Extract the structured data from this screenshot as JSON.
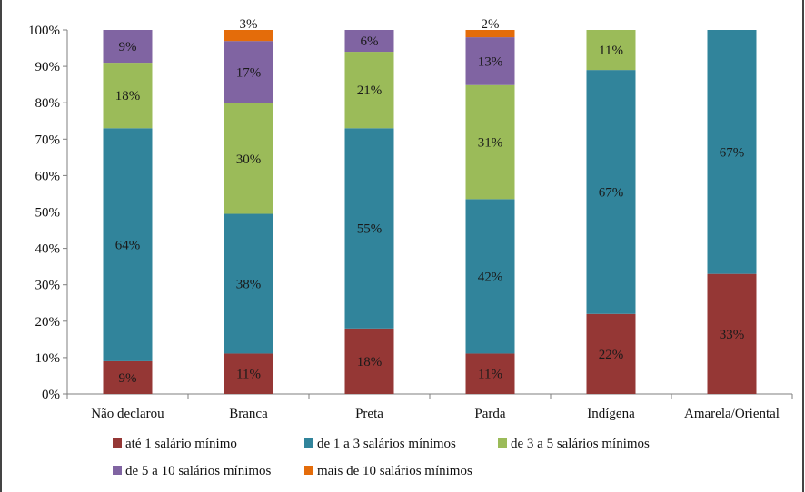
{
  "chart_data": {
    "type": "bar",
    "stacked": true,
    "percent_stacked": true,
    "categories": [
      "Não declarou",
      "Branca",
      "Preta",
      "Parda",
      "Indígena",
      "Amarela/Oriental"
    ],
    "series": [
      {
        "name": "até 1 salário mínimo",
        "color": "#953735",
        "values": [
          9,
          11,
          18,
          11,
          22,
          33
        ],
        "labels": [
          "9%",
          "11%",
          "18%",
          "11%",
          "22%",
          "33%"
        ]
      },
      {
        "name": "de 1 a 3 salários mínimos",
        "color": "#31849b",
        "values": [
          64,
          38,
          55,
          42,
          67,
          67
        ],
        "labels": [
          "64%",
          "38%",
          "55%",
          "42%",
          "67%",
          "67%"
        ]
      },
      {
        "name": "de 3 a 5 salários mínimos",
        "color": "#9bbb59",
        "values": [
          18,
          30,
          21,
          31,
          11,
          0
        ],
        "labels": [
          "18%",
          "30%",
          "21%",
          "31%",
          "11%",
          ""
        ]
      },
      {
        "name": "de 5 a 10 salários mínimos",
        "color": "#8064a2",
        "values": [
          9,
          17,
          6,
          13,
          0,
          0
        ],
        "labels": [
          "9%",
          "17%",
          "6%",
          "13%",
          "",
          ""
        ]
      },
      {
        "name": "mais de 10 salários mínimos",
        "color": "#e46c0a",
        "values": [
          0,
          3,
          0,
          2,
          0,
          0
        ],
        "labels": [
          "",
          "3%",
          "",
          "2%",
          "",
          ""
        ]
      }
    ],
    "yticks": [
      "0%",
      "10%",
      "20%",
      "30%",
      "40%",
      "50%",
      "60%",
      "70%",
      "80%",
      "90%",
      "100%"
    ],
    "ylim": [
      0,
      100
    ],
    "grid": false,
    "legend_position": "bottom"
  }
}
